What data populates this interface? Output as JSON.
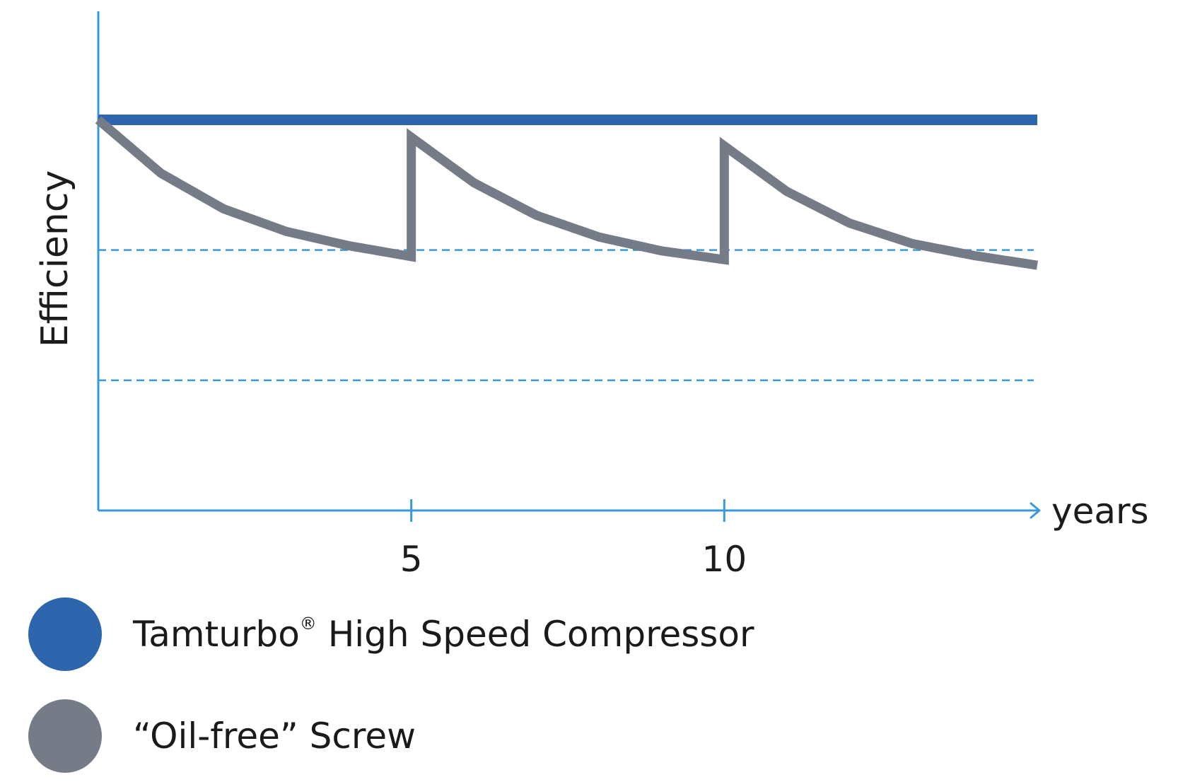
{
  "chart_data": {
    "type": "line",
    "title": "",
    "ylabel": "Efficiency",
    "xlabel": "years",
    "x_ticks": [
      5,
      10
    ],
    "x_tick_labels": [
      "5",
      "10"
    ],
    "xlim": [
      0,
      15
    ],
    "ylim": [
      0,
      100
    ],
    "y_ticks_shown": false,
    "reference_lines": [
      {
        "y": 60,
        "style": "dashed"
      },
      {
        "y": 30,
        "style": "dashed"
      }
    ],
    "series": [
      {
        "name": "Tamturbo® High Speed Compressor",
        "color": "#2e66ae",
        "points": [
          [
            0,
            90
          ],
          [
            15,
            90
          ]
        ]
      },
      {
        "name": "“Oil-free” Screw",
        "color": "#757b87",
        "points": [
          [
            0,
            90
          ],
          [
            1,
            77.7
          ],
          [
            2,
            69.5
          ],
          [
            3,
            64.3
          ],
          [
            4,
            61.0
          ],
          [
            5,
            58.5
          ],
          [
            5,
            86
          ],
          [
            6,
            75.5
          ],
          [
            7,
            68.0
          ],
          [
            8,
            63.0
          ],
          [
            9,
            59.8
          ],
          [
            10,
            57.8
          ],
          [
            10,
            84
          ],
          [
            11,
            73.5
          ],
          [
            12,
            66.2
          ],
          [
            13,
            61.5
          ],
          [
            14,
            58.7
          ],
          [
            15,
            56.5
          ]
        ]
      }
    ],
    "legend_position": "bottom-left",
    "grid": false,
    "colors": {
      "axis": "#3a9ad9",
      "dashed": "#3a9ad9",
      "tamturbo": "#2e66ae",
      "screw": "#757b87"
    }
  },
  "legend": {
    "tamturbo_label": "Tamturbo",
    "tamturbo_mark": "®",
    "tamturbo_rest": " High Speed Compressor",
    "screw_label": "“Oil-free” Screw"
  }
}
